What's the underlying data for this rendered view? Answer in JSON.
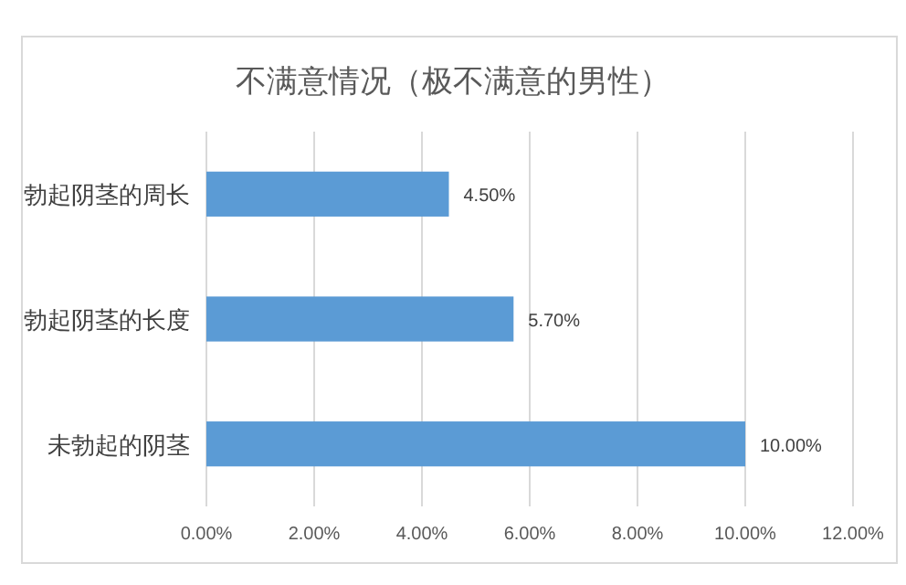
{
  "chart_data": {
    "type": "bar",
    "orientation": "horizontal",
    "title": "不满意情况（极不满意的男性）",
    "categories": [
      "勃起阴茎的周长",
      "勃起阴茎的长度",
      "未勃起的阴茎"
    ],
    "values": [
      4.5,
      5.7,
      10
    ],
    "value_labels": [
      "4.50%",
      "5.70%",
      "10.00%"
    ],
    "color": "#5b9bd5",
    "xlim": [
      0,
      12
    ],
    "xticks": [
      {
        "value": 0,
        "label": "0.00%"
      },
      {
        "value": 2,
        "label": "2.00%"
      },
      {
        "value": 4,
        "label": "4.00%"
      },
      {
        "value": 6,
        "label": "6.00%"
      },
      {
        "value": 8,
        "label": "8.00%"
      },
      {
        "value": 10,
        "label": "10.00%"
      },
      {
        "value": 12,
        "label": "12.00%"
      }
    ],
    "grid": "x"
  }
}
